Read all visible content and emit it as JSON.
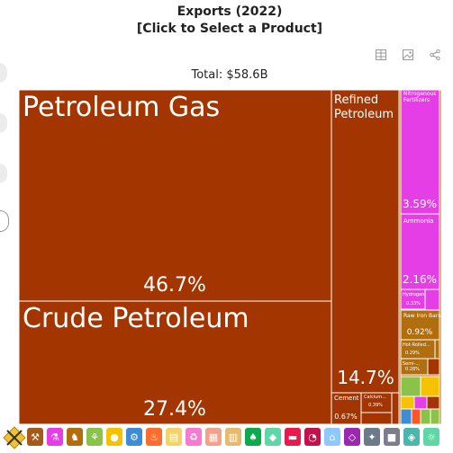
{
  "header": {
    "title_line1": "Exports (2022)",
    "title_line2": "[Click to Select a Product]"
  },
  "toolbar": {
    "icons": [
      "table-icon",
      "image-icon",
      "share-icon"
    ]
  },
  "summary": {
    "total_label": "Total: $58.6B"
  },
  "chart_data": {
    "type": "treemap",
    "title": "Exports (2022)",
    "total": "$58.6B",
    "items": [
      {
        "name": "Petroleum Gas",
        "share": 46.7,
        "share_label": "46.7%",
        "color": "#a33500"
      },
      {
        "name": "Crude Petroleum",
        "share": 27.4,
        "share_label": "27.4%",
        "color": "#a33500"
      },
      {
        "name": "Refined Petroleum",
        "share": 14.7,
        "share_label": "14.7%",
        "color": "#a33500"
      },
      {
        "name": "Cement",
        "share": 0.67,
        "share_label": "0.67%",
        "color": "#a33500"
      },
      {
        "name": "Calcium...",
        "share": 0.39,
        "share_label": "0.39%",
        "color": "#a33500"
      },
      {
        "name": "Nitrogenous Fertilizers",
        "share": 3.59,
        "share_label": "3.59%",
        "color": "#e63ee6"
      },
      {
        "name": "Ammonia",
        "share": 2.16,
        "share_label": "2.16%",
        "color": "#e63ee6"
      },
      {
        "name": "Hydrogen",
        "share": 0.33,
        "share_label": "0.33%",
        "color": "#e63ee6"
      },
      {
        "name": "Raw Iron Bars",
        "share": 0.92,
        "share_label": "0.92%",
        "color": "#b06e0e"
      },
      {
        "name": "Hot-Rolled...",
        "share": 0.29,
        "share_label": "0.29%",
        "color": "#b06e0e"
      },
      {
        "name": "Semi-...",
        "share": 0.28,
        "share_label": "0.28%",
        "color": "#b06e0e"
      }
    ],
    "extra_tiles": [
      "#8bc34a",
      "#f6c200",
      "#f6c200",
      "#e63ee6",
      "#a33500",
      "#3c8dd6",
      "#ff5722",
      "#8bc34a"
    ]
  },
  "legend": {
    "categories": [
      {
        "name": "metals",
        "color": "#a55a1a",
        "icon": "anvil-icon"
      },
      {
        "name": "chemicals",
        "color": "#e63ee6",
        "icon": "flask-icon"
      },
      {
        "name": "animal-products",
        "color": "#b06e0e",
        "icon": "cow-icon"
      },
      {
        "name": "vegetable-products",
        "color": "#8bc34a",
        "icon": "wheat-icon"
      },
      {
        "name": "foodstuffs",
        "color": "#f6c200",
        "icon": "food-icon"
      },
      {
        "name": "machines",
        "color": "#3c8dd6",
        "icon": "gear-icon"
      },
      {
        "name": "mineral-products",
        "color": "#ff6d2e",
        "icon": "flame-icon"
      },
      {
        "name": "paper-goods",
        "color": "#f2d36a",
        "icon": "paper-icon"
      },
      {
        "name": "plastics",
        "color": "#f57bd1",
        "icon": "recycle-icon"
      },
      {
        "name": "stone-glass",
        "color": "#f0a28b",
        "icon": "brick-icon"
      },
      {
        "name": "wood",
        "color": "#e6bb6f",
        "icon": "wood-icon"
      },
      {
        "name": "textiles",
        "color": "#0da94d",
        "icon": "shirt-icon"
      },
      {
        "name": "animal-hides",
        "color": "#5fd6a5",
        "icon": "hide-icon"
      },
      {
        "name": "transportation",
        "color": "#e8194d",
        "icon": "car-icon"
      },
      {
        "name": "instruments",
        "color": "#c2124e",
        "icon": "gauge-icon"
      },
      {
        "name": "footwear",
        "color": "#8fc7ff",
        "icon": "shoe-icon"
      },
      {
        "name": "precious-metals",
        "color": "#9c27b0",
        "icon": "gem-icon"
      },
      {
        "name": "weapons",
        "color": "#6c7a89",
        "icon": "weapon-icon"
      },
      {
        "name": "miscellaneous",
        "color": "#7a7f8a",
        "icon": "box-icon"
      },
      {
        "name": "arts",
        "color": "#4db6ac",
        "icon": "art-icon"
      },
      {
        "name": "unknown",
        "color": "#5fd6a5",
        "icon": "sun-icon"
      }
    ]
  }
}
